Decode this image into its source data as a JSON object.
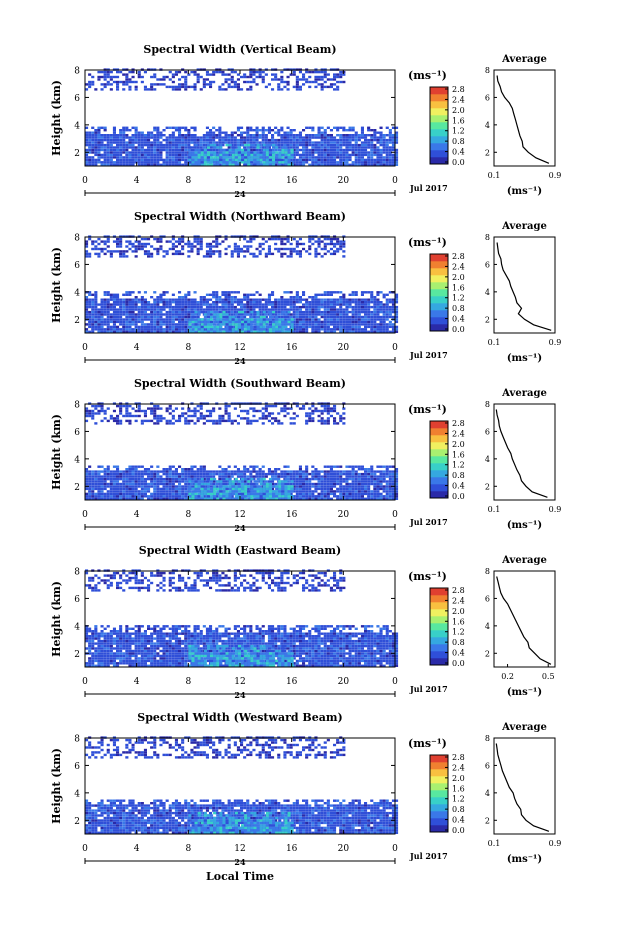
{
  "figure": {
    "xlabel": "Local Time",
    "date_label": "Jul 2017",
    "day_label": "24",
    "colorbar_unit": "(ms⁻¹)",
    "colorbar_ticks": [
      "0.0",
      "0.4",
      "0.8",
      "1.2",
      "1.6",
      "2.0",
      "2.4",
      "2.8"
    ],
    "colorbar_colors": [
      "#2a2aa8",
      "#2f4fd8",
      "#3a78e8",
      "#35a8e0",
      "#38d0c8",
      "#58e8a0",
      "#a8f070",
      "#f0f060",
      "#f8c040",
      "#f08030",
      "#e04030"
    ],
    "main_xticks": [
      "0",
      "4",
      "8",
      "12",
      "16",
      "20",
      "0"
    ],
    "main_yticks": [
      "2",
      "4",
      "6",
      "8"
    ],
    "ylabel": "Height (km)",
    "avg_title": "Average",
    "avg_xlabel": "(ms⁻¹)",
    "avg_yticks": [
      "2",
      "4",
      "6",
      "8"
    ]
  },
  "chart_data": [
    {
      "type": "heatmap",
      "title": "Spectral Width (Vertical Beam)",
      "xlabel": "Local Time",
      "ylabel": "Height (km)",
      "x_range": [
        0,
        24
      ],
      "y_range": [
        1,
        8
      ],
      "color_range": [
        0.0,
        2.8
      ],
      "data_coverage": [
        {
          "time_start": 0,
          "time_end": 24,
          "height_min": 1,
          "height_max": 3.8,
          "typical_width": 0.4
        },
        {
          "time_start": 8,
          "time_end": 16,
          "height_min": 1,
          "height_max": 2.5,
          "typical_width": 0.8
        },
        {
          "time_start": 0,
          "time_end": 20,
          "height_min": 6.5,
          "height_max": 8,
          "typical_width": 0.3
        }
      ],
      "average_profile": {
        "title": "Average",
        "xlabel": "(ms⁻¹)",
        "xticks": [
          "0.1",
          "0.9"
        ],
        "xlim": [
          0.1,
          0.9
        ],
        "height": [
          1.2,
          1.6,
          2.0,
          2.4,
          2.8,
          3.2,
          3.6,
          4.0,
          4.4,
          4.8,
          5.2,
          5.6,
          6.0,
          6.4,
          6.8,
          7.2,
          7.6
        ],
        "width": [
          0.82,
          0.65,
          0.55,
          0.48,
          0.47,
          0.44,
          0.42,
          0.4,
          0.38,
          0.36,
          0.34,
          0.3,
          0.24,
          0.2,
          0.18,
          0.15,
          0.14
        ]
      }
    },
    {
      "type": "heatmap",
      "title": "Spectral Width (Northward Beam)",
      "xlabel": "Local Time",
      "ylabel": "Height (km)",
      "x_range": [
        0,
        24
      ],
      "y_range": [
        1,
        8
      ],
      "color_range": [
        0.0,
        2.8
      ],
      "data_coverage": [
        {
          "time_start": 0,
          "time_end": 24,
          "height_min": 1,
          "height_max": 4.0,
          "typical_width": 0.4
        },
        {
          "time_start": 8,
          "time_end": 16,
          "height_min": 1,
          "height_max": 2.5,
          "typical_width": 0.8
        },
        {
          "time_start": 0,
          "time_end": 20,
          "height_min": 6.5,
          "height_max": 8,
          "typical_width": 0.3
        }
      ],
      "average_profile": {
        "title": "Average",
        "xlabel": "(ms⁻¹)",
        "xticks": [
          "0.1",
          "0.9"
        ],
        "xlim": [
          0.1,
          0.9
        ],
        "height": [
          1.2,
          1.6,
          2.0,
          2.4,
          2.8,
          3.2,
          3.6,
          4.0,
          4.4,
          4.8,
          5.2,
          5.6,
          6.0,
          6.4,
          6.8,
          7.2,
          7.6
        ],
        "width": [
          0.85,
          0.62,
          0.5,
          0.42,
          0.46,
          0.4,
          0.38,
          0.35,
          0.32,
          0.3,
          0.26,
          0.22,
          0.2,
          0.19,
          0.16,
          0.15,
          0.14
        ]
      }
    },
    {
      "type": "heatmap",
      "title": "Spectral Width (Southward Beam)",
      "xlabel": "Local Time",
      "ylabel": "Height (km)",
      "x_range": [
        0,
        24
      ],
      "y_range": [
        1,
        8
      ],
      "color_range": [
        0.0,
        2.8
      ],
      "data_coverage": [
        {
          "time_start": 0,
          "time_end": 24,
          "height_min": 1,
          "height_max": 3.5,
          "typical_width": 0.4
        },
        {
          "time_start": 8,
          "time_end": 16,
          "height_min": 1,
          "height_max": 2.5,
          "typical_width": 0.8
        },
        {
          "time_start": 0,
          "time_end": 20,
          "height_min": 6.5,
          "height_max": 8,
          "typical_width": 0.3
        }
      ],
      "average_profile": {
        "title": "Average",
        "xlabel": "(ms⁻¹)",
        "xticks": [
          "0.1",
          "0.9"
        ],
        "xlim": [
          0.1,
          0.9
        ],
        "height": [
          1.2,
          1.6,
          2.0,
          2.4,
          2.8,
          3.2,
          3.6,
          4.0,
          4.4,
          4.8,
          5.2,
          5.6,
          6.0,
          6.4,
          6.8,
          7.2,
          7.6
        ],
        "width": [
          0.8,
          0.6,
          0.52,
          0.46,
          0.44,
          0.4,
          0.37,
          0.34,
          0.32,
          0.28,
          0.25,
          0.22,
          0.19,
          0.17,
          0.16,
          0.14,
          0.13
        ]
      }
    },
    {
      "type": "heatmap",
      "title": "Spectral Width (Eastward Beam)",
      "xlabel": "Local Time",
      "ylabel": "Height (km)",
      "x_range": [
        0,
        24
      ],
      "y_range": [
        1,
        8
      ],
      "color_range": [
        0.0,
        2.8
      ],
      "data_coverage": [
        {
          "time_start": 0,
          "time_end": 24,
          "height_min": 1,
          "height_max": 4.0,
          "typical_width": 0.4
        },
        {
          "time_start": 8,
          "time_end": 16,
          "height_min": 1,
          "height_max": 2.5,
          "typical_width": 0.8
        },
        {
          "time_start": 0,
          "time_end": 20,
          "height_min": 6.5,
          "height_max": 8,
          "typical_width": 0.3
        }
      ],
      "average_profile": {
        "title": "Average",
        "xlabel": "(ms⁻¹)",
        "xticks": [
          "0.2",
          "0.5"
        ],
        "xlim": [
          0.1,
          0.55
        ],
        "height": [
          1.2,
          1.6,
          2.0,
          2.4,
          2.8,
          3.2,
          3.6,
          4.0,
          4.4,
          4.8,
          5.2,
          5.6,
          6.0,
          6.4,
          6.8,
          7.2,
          7.6
        ],
        "width": [
          0.52,
          0.44,
          0.4,
          0.36,
          0.35,
          0.32,
          0.3,
          0.28,
          0.26,
          0.24,
          0.22,
          0.2,
          0.17,
          0.15,
          0.14,
          0.13,
          0.12
        ]
      }
    },
    {
      "type": "heatmap",
      "title": "Spectral Width (Westward Beam)",
      "xlabel": "Local Time",
      "ylabel": "Height (km)",
      "x_range": [
        0,
        24
      ],
      "y_range": [
        1,
        8
      ],
      "color_range": [
        0.0,
        2.8
      ],
      "data_coverage": [
        {
          "time_start": 0,
          "time_end": 24,
          "height_min": 1,
          "height_max": 3.5,
          "typical_width": 0.4
        },
        {
          "time_start": 8,
          "time_end": 16,
          "height_min": 1,
          "height_max": 2.5,
          "typical_width": 0.8
        },
        {
          "time_start": 0,
          "time_end": 20,
          "height_min": 6.5,
          "height_max": 8,
          "typical_width": 0.3
        }
      ],
      "average_profile": {
        "title": "Average",
        "xlabel": "(ms⁻¹)",
        "xticks": [
          "0.1",
          "0.9"
        ],
        "xlim": [
          0.1,
          0.9
        ],
        "height": [
          1.2,
          1.6,
          2.0,
          2.4,
          2.8,
          3.2,
          3.6,
          4.0,
          4.4,
          4.8,
          5.2,
          5.6,
          6.0,
          6.4,
          6.8,
          7.2,
          7.6
        ],
        "width": [
          0.82,
          0.62,
          0.52,
          0.46,
          0.45,
          0.4,
          0.37,
          0.35,
          0.3,
          0.27,
          0.24,
          0.21,
          0.19,
          0.17,
          0.15,
          0.14,
          0.13
        ]
      }
    }
  ]
}
